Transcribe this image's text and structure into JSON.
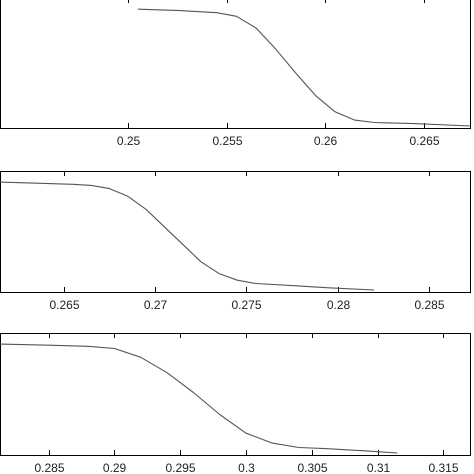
{
  "chart_data": [
    {
      "type": "line",
      "title": "",
      "xlabel": "",
      "ylabel": "",
      "xlim": [
        0.2435,
        0.2674
      ],
      "ylim": [
        0,
        1
      ],
      "grid": false,
      "xticks": [
        0.25,
        0.255,
        0.26,
        0.265
      ],
      "xtick_labels": [
        "0.25",
        "0.255",
        "0.26",
        "0.265"
      ],
      "series": [
        {
          "x": [
            0.2505,
            0.2525,
            0.2545,
            0.2555,
            0.2565,
            0.2575,
            0.2585,
            0.2595,
            0.2605,
            0.2615,
            0.2625,
            0.2645,
            0.2674
          ],
          "y": [
            0.99,
            0.98,
            0.96,
            0.93,
            0.83,
            0.65,
            0.45,
            0.26,
            0.12,
            0.05,
            0.03,
            0.02,
            0.0
          ]
        }
      ]
    },
    {
      "type": "line",
      "title": "",
      "xlabel": "",
      "ylabel": "",
      "xlim": [
        0.2615,
        0.2873
      ],
      "ylim": [
        0,
        1
      ],
      "grid": false,
      "xticks": [
        0.265,
        0.27,
        0.275,
        0.28,
        0.285
      ],
      "xtick_labels": [
        "0.265",
        "0.27",
        "0.275",
        "0.28",
        "0.285"
      ],
      "series": [
        {
          "x": [
            0.2615,
            0.2635,
            0.2655,
            0.2665,
            0.2675,
            0.2685,
            0.2695,
            0.2705,
            0.2715,
            0.2725,
            0.2735,
            0.2745,
            0.2755,
            0.2775,
            0.2795,
            0.282
          ],
          "y": [
            0.99,
            0.98,
            0.97,
            0.96,
            0.93,
            0.86,
            0.74,
            0.58,
            0.42,
            0.26,
            0.15,
            0.09,
            0.06,
            0.04,
            0.02,
            0.0
          ]
        }
      ]
    },
    {
      "type": "line",
      "title": "",
      "xlabel": "",
      "ylabel": "",
      "xlim": [
        0.2813,
        0.3171
      ],
      "ylim": [
        0,
        1
      ],
      "grid": false,
      "xticks": [
        0.285,
        0.29,
        0.295,
        0.3,
        0.305,
        0.31,
        0.315
      ],
      "xtick_labels": [
        "0.285",
        "0.29",
        "0.295",
        "0.3",
        "0.305",
        "0.31",
        "0.315"
      ],
      "series": [
        {
          "x": [
            0.2813,
            0.285,
            0.288,
            0.29,
            0.292,
            0.294,
            0.296,
            0.298,
            0.3,
            0.302,
            0.304,
            0.306,
            0.309,
            0.3115
          ],
          "y": [
            0.99,
            0.98,
            0.97,
            0.95,
            0.87,
            0.73,
            0.55,
            0.35,
            0.18,
            0.09,
            0.05,
            0.04,
            0.02,
            0.0
          ]
        }
      ]
    }
  ]
}
